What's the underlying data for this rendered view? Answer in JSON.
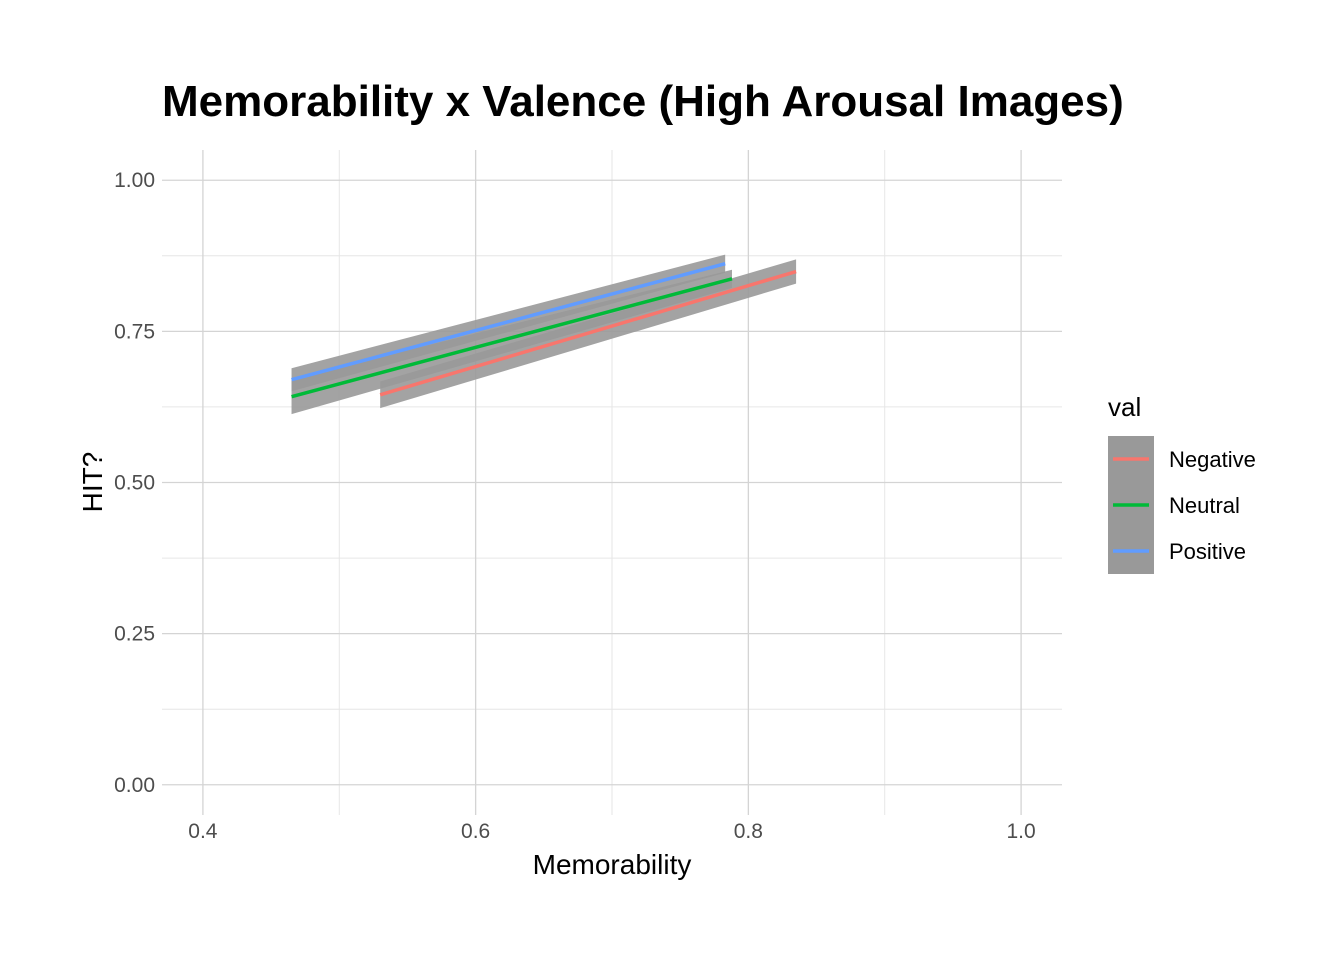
{
  "chart_data": {
    "type": "line",
    "title": "Memorability x Valence (High Arousal Images)",
    "xlabel": "Memorability",
    "ylabel": "HIT?",
    "xlim": [
      0.37,
      1.03
    ],
    "ylim": [
      -0.05,
      1.05
    ],
    "x_ticks": [
      0.4,
      0.6,
      0.8,
      1.0
    ],
    "x_tick_labels": [
      "0.4",
      "0.6",
      "0.8",
      "1.0"
    ],
    "x_minor_ticks": [
      0.5,
      0.7,
      0.9
    ],
    "y_ticks": [
      0.0,
      0.25,
      0.5,
      0.75,
      1.0
    ],
    "y_tick_labels": [
      "0.00",
      "0.25",
      "0.50",
      "0.75",
      "1.00"
    ],
    "y_minor_ticks": [
      0.125,
      0.375,
      0.625,
      0.875
    ],
    "grid": true,
    "legend": {
      "title": "val",
      "position": "right"
    },
    "ribbon_color": "#999999",
    "series": [
      {
        "name": "Negative",
        "color": "#F8766D",
        "x": [
          0.53,
          0.835
        ],
        "y": [
          0.645,
          0.849
        ],
        "lower": [
          0.623,
          0.829
        ],
        "upper": [
          0.667,
          0.869
        ]
      },
      {
        "name": "Neutral",
        "color": "#00BA38",
        "x": [
          0.465,
          0.788
        ],
        "y": [
          0.642,
          0.837
        ],
        "lower": [
          0.613,
          0.822
        ],
        "upper": [
          0.671,
          0.852
        ]
      },
      {
        "name": "Positive",
        "color": "#619CFF",
        "x": [
          0.465,
          0.783
        ],
        "y": [
          0.67,
          0.862
        ],
        "lower": [
          0.651,
          0.847
        ],
        "upper": [
          0.689,
          0.877
        ]
      }
    ]
  }
}
